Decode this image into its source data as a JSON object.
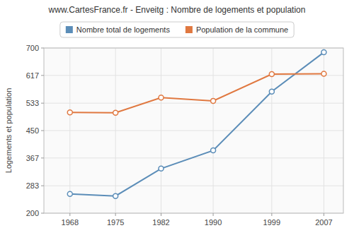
{
  "chart_data": {
    "type": "line",
    "title": "www.CartesFrance.fr - Enveitg : Nombre de logements et population",
    "y_label": "Logements et population",
    "x": [
      1968,
      1975,
      1982,
      1990,
      1999,
      2007
    ],
    "series": [
      {
        "name": "Nombre total de logements",
        "color": "#5b8db8",
        "values": [
          258,
          252,
          335,
          390,
          568,
          687
        ]
      },
      {
        "name": "Population de la commune",
        "color": "#e07840",
        "values": [
          505,
          504,
          550,
          540,
          621,
          622
        ]
      }
    ],
    "xlim": [
      1964,
      2010
    ],
    "xticks": [
      1968,
      1975,
      1982,
      1990,
      1999,
      2007
    ],
    "ylim": [
      200,
      700
    ],
    "yticks": [
      200,
      283,
      367,
      450,
      533,
      617,
      700
    ],
    "grid": true,
    "legend": "top",
    "marker": "circle"
  }
}
